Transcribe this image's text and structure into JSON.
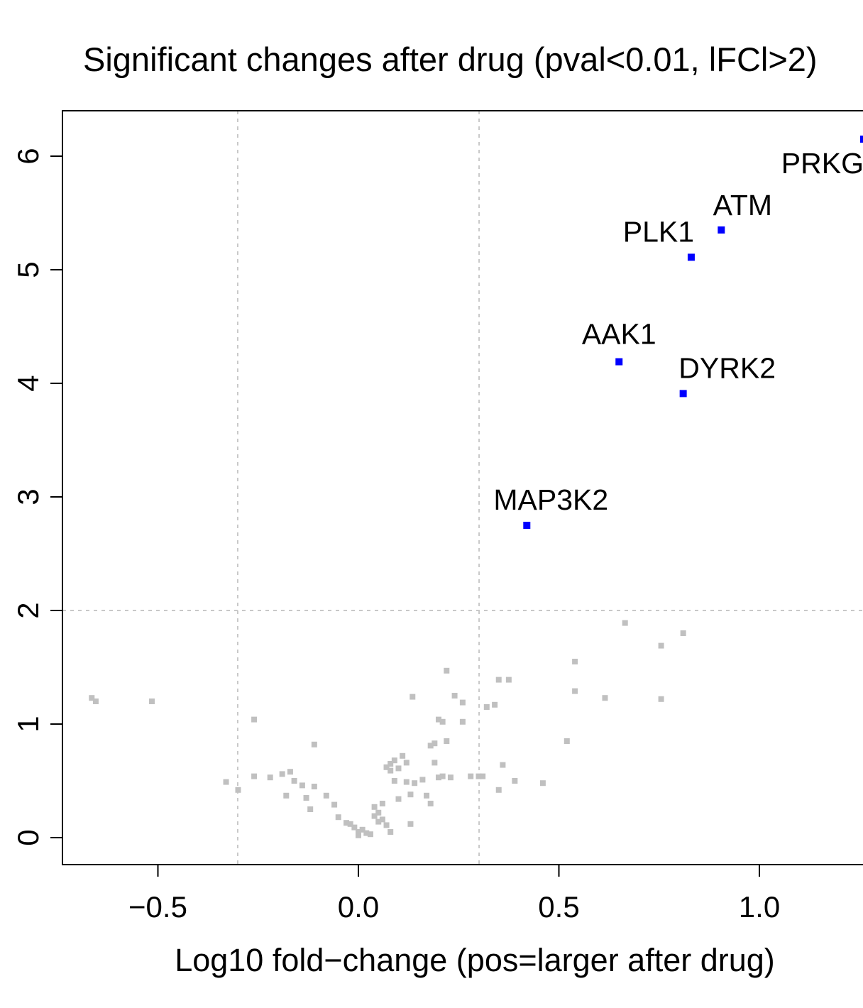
{
  "chart_data": {
    "type": "scatter",
    "title": "Significant changes after drug (pval<0.01, lFCl>2)",
    "xlabel": "Log10 fold−change (pos=larger after drug)",
    "ylabel": "",
    "xlim": [
      -0.74,
      1.26
    ],
    "ylim": [
      -0.24,
      6.39
    ],
    "x_ticks": [
      -0.5,
      0.0,
      0.5,
      1.0
    ],
    "x_tick_labels": [
      "−0.5",
      "0.0",
      "0.5",
      "1.0"
    ],
    "y_ticks": [
      0,
      1,
      2,
      3,
      4,
      5,
      6
    ],
    "y_tick_labels": [
      "0",
      "1",
      "2",
      "3",
      "4",
      "5",
      "6"
    ],
    "grid": false,
    "thresholds": {
      "x": [
        -0.301,
        0.301
      ],
      "y": [
        2
      ]
    },
    "colors": {
      "significant": "#0000ff",
      "nonsignificant": "#c0c0c0",
      "threshold_line": "#c8c8c8"
    },
    "significant_points": [
      {
        "label": "PRKG",
        "x": 1.26,
        "y": 6.15
      },
      {
        "label": "ATM",
        "x": 0.905,
        "y": 5.35
      },
      {
        "label": "PLK1",
        "x": 0.83,
        "y": 5.11
      },
      {
        "label": "AAK1",
        "x": 0.65,
        "y": 4.19
      },
      {
        "label": "DYRK2",
        "x": 0.81,
        "y": 3.91
      },
      {
        "label": "MAP3K2",
        "x": 0.42,
        "y": 2.75
      }
    ],
    "nonsignificant_points": [
      [
        -0.665,
        1.23
      ],
      [
        -0.655,
        1.2
      ],
      [
        -0.515,
        1.2
      ],
      [
        -0.33,
        0.49
      ],
      [
        -0.3,
        0.42
      ],
      [
        -0.26,
        1.04
      ],
      [
        -0.26,
        0.54
      ],
      [
        -0.22,
        0.53
      ],
      [
        -0.19,
        0.56
      ],
      [
        -0.17,
        0.58
      ],
      [
        -0.18,
        0.37
      ],
      [
        -0.16,
        0.5
      ],
      [
        -0.14,
        0.46
      ],
      [
        -0.13,
        0.35
      ],
      [
        -0.11,
        0.82
      ],
      [
        -0.11,
        0.45
      ],
      [
        -0.12,
        0.25
      ],
      [
        -0.08,
        0.37
      ],
      [
        -0.06,
        0.29
      ],
      [
        -0.05,
        0.18
      ],
      [
        -0.03,
        0.13
      ],
      [
        -0.02,
        0.12
      ],
      [
        -0.01,
        0.09
      ],
      [
        0.0,
        0.05
      ],
      [
        0.0,
        0.02
      ],
      [
        0.01,
        0.07
      ],
      [
        0.02,
        0.04
      ],
      [
        0.03,
        0.03
      ],
      [
        0.04,
        0.27
      ],
      [
        0.04,
        0.19
      ],
      [
        0.05,
        0.14
      ],
      [
        0.05,
        0.22
      ],
      [
        0.06,
        0.16
      ],
      [
        0.06,
        0.3
      ],
      [
        0.07,
        0.11
      ],
      [
        0.07,
        0.62
      ],
      [
        0.08,
        0.65
      ],
      [
        0.08,
        0.59
      ],
      [
        0.08,
        0.05
      ],
      [
        0.09,
        0.68
      ],
      [
        0.09,
        0.5
      ],
      [
        0.1,
        0.34
      ],
      [
        0.1,
        0.61
      ],
      [
        0.11,
        0.72
      ],
      [
        0.12,
        0.66
      ],
      [
        0.12,
        0.49
      ],
      [
        0.13,
        0.38
      ],
      [
        0.14,
        0.48
      ],
      [
        0.13,
        0.12
      ],
      [
        0.135,
        1.24
      ],
      [
        0.16,
        0.51
      ],
      [
        0.17,
        0.37
      ],
      [
        0.18,
        0.3
      ],
      [
        0.18,
        0.81
      ],
      [
        0.19,
        0.83
      ],
      [
        0.19,
        0.66
      ],
      [
        0.2,
        0.53
      ],
      [
        0.2,
        1.04
      ],
      [
        0.21,
        0.54
      ],
      [
        0.22,
        0.85
      ],
      [
        0.21,
        1.02
      ],
      [
        0.22,
        1.47
      ],
      [
        0.23,
        0.53
      ],
      [
        0.24,
        1.25
      ],
      [
        0.26,
        1.19
      ],
      [
        0.26,
        1.02
      ],
      [
        0.28,
        0.54
      ],
      [
        0.3,
        0.54
      ],
      [
        0.31,
        0.54
      ],
      [
        0.32,
        1.15
      ],
      [
        0.34,
        1.17
      ],
      [
        0.35,
        1.39
      ],
      [
        0.36,
        0.64
      ],
      [
        0.35,
        0.42
      ],
      [
        0.375,
        1.39
      ],
      [
        0.39,
        0.5
      ],
      [
        0.46,
        0.48
      ],
      [
        0.52,
        0.85
      ],
      [
        0.54,
        1.55
      ],
      [
        0.54,
        1.29
      ],
      [
        0.615,
        1.23
      ],
      [
        0.665,
        1.89
      ],
      [
        0.755,
        1.69
      ],
      [
        0.755,
        1.22
      ],
      [
        0.81,
        1.8
      ]
    ]
  }
}
